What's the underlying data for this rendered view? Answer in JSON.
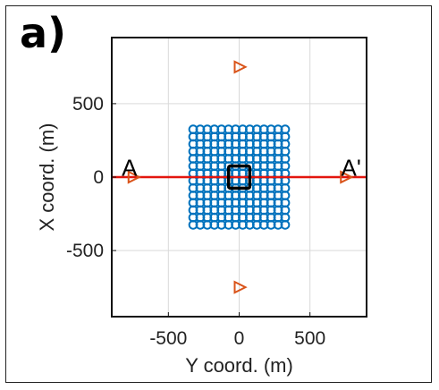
{
  "figure": {
    "panel_label": "a)"
  },
  "chart_data": {
    "type": "scatter",
    "title": "",
    "xlabel": "Y coord. (m)",
    "ylabel": "X coord. (m)",
    "xlim": [
      -900,
      900
    ],
    "ylim": [
      -950,
      950
    ],
    "xticks": [
      -500,
      0,
      500
    ],
    "yticks": [
      -500,
      0,
      500
    ],
    "xtick_labels": [
      "-500",
      "0",
      "500"
    ],
    "ytick_labels": [
      "-500",
      "0",
      "500"
    ],
    "grid": true,
    "legend": "none",
    "grid_points": {
      "x_start": -325,
      "x_end": 325,
      "y_start": -325,
      "y_end": 325,
      "step": 50,
      "marker": "circle",
      "color": "#0072BD"
    },
    "receivers": {
      "marker": "triangle-right",
      "color": "#D95319",
      "points": [
        [
          -750,
          0
        ],
        [
          0,
          750
        ],
        [
          750,
          0
        ],
        [
          0,
          -750
        ]
      ]
    },
    "profile_line": {
      "from": [
        -900,
        0
      ],
      "to": [
        900,
        0
      ],
      "color": "#E3150E"
    },
    "square": {
      "x_range": [
        -75,
        75
      ],
      "y_range": [
        -75,
        75
      ],
      "color": "#000000"
    },
    "annotations": [
      {
        "text": "A",
        "x": -830,
        "y": 70
      },
      {
        "text": "A'",
        "x": 720,
        "y": 70
      }
    ]
  }
}
